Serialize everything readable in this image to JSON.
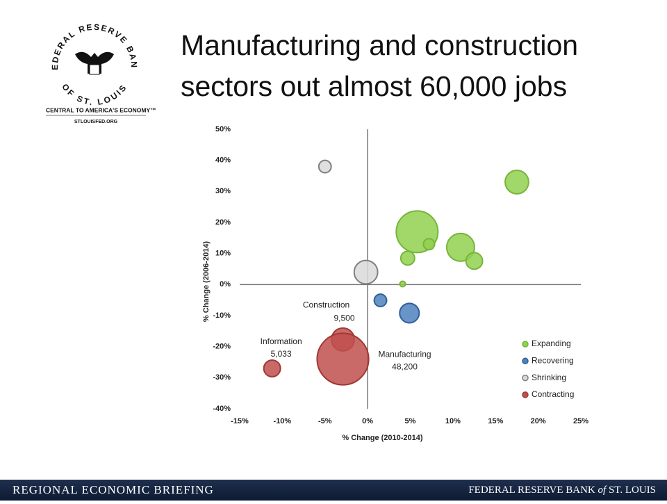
{
  "header": {
    "title_lines": [
      "Manufacturing and construction",
      "sectors out almost 60,000 jobs"
    ],
    "logo": {
      "ring_top": "FEDERAL RESERVE BANK",
      "ring_bottom": "OF ST. LOUIS",
      "tagline": "CENTRAL TO AMERICA'S ECONOMY™",
      "website": "STLOUISFED.ORG"
    }
  },
  "footer": {
    "left": "REGIONAL ECONOMIC BRIEFING",
    "right_parts": [
      "FEDERAL RESERVE BANK",
      "of",
      "ST. LOUIS"
    ]
  },
  "chart_data": {
    "type": "bubble",
    "x_label": "% Change  (2010-2014)",
    "y_label": "% Change  (2006-2014)",
    "xlim": [
      -15,
      25
    ],
    "ylim": [
      -40,
      50
    ],
    "xticks": [
      {
        "value": -15,
        "label": "-15%"
      },
      {
        "value": -10,
        "label": "-10%"
      },
      {
        "value": -5,
        "label": "-5%"
      },
      {
        "value": 0,
        "label": "0%"
      },
      {
        "value": 5,
        "label": "5%"
      },
      {
        "value": 10,
        "label": "10%"
      },
      {
        "value": 15,
        "label": "15%"
      },
      {
        "value": 20,
        "label": "20%"
      },
      {
        "value": 25,
        "label": "25%"
      }
    ],
    "yticks": [
      {
        "value": 50,
        "label": "50%"
      },
      {
        "value": 40,
        "label": "40%"
      },
      {
        "value": 30,
        "label": "30%"
      },
      {
        "value": 20,
        "label": "20%"
      },
      {
        "value": 10,
        "label": "10%"
      },
      {
        "value": 0,
        "label": "0%"
      },
      {
        "value": -10,
        "label": "-10%"
      },
      {
        "value": -20,
        "label": "-20%"
      },
      {
        "value": -30,
        "label": "-30%"
      },
      {
        "value": -40,
        "label": "-40%"
      }
    ],
    "legend": "lower right",
    "series": [
      {
        "name": "Expanding",
        "color": "#92d050",
        "edge_color": "#77b53a",
        "x": [
          17.5,
          5.8,
          7.2,
          10.9,
          12.5,
          4.7,
          4.1
        ],
        "y": [
          33,
          17,
          13,
          12,
          7.6,
          8.5,
          0.2
        ],
        "sizes": [
          10000,
          31500,
          2250,
          14000,
          5000,
          3500,
          560
        ]
      },
      {
        "name": "Recovering",
        "color": "#4f81bd",
        "edge_color": "#2f5f9a",
        "x": [
          1.5,
          4.9
        ],
        "y": [
          -5.1,
          -9.2
        ],
        "sizes": [
          2800,
          6900
        ]
      },
      {
        "name": "Shrinking",
        "color": "#d9d9d9",
        "edge_color": "#7f7f7f",
        "x": [
          -5,
          -0.2
        ],
        "y": [
          38,
          4
        ],
        "sizes": [
          2800,
          10000
        ]
      },
      {
        "name": "Contracting",
        "color": "#c0504d",
        "edge_color": "#a03834",
        "x": [
          -11.2,
          -2.9,
          -2.9
        ],
        "y": [
          -27,
          -17.7,
          -24
        ],
        "sizes": [
          5033,
          9500,
          48200
        ],
        "point_labels": [
          "Information",
          "Construction",
          "Manufacturing"
        ],
        "value_labels": [
          "5,033",
          "9,500",
          "48,200"
        ]
      }
    ]
  }
}
